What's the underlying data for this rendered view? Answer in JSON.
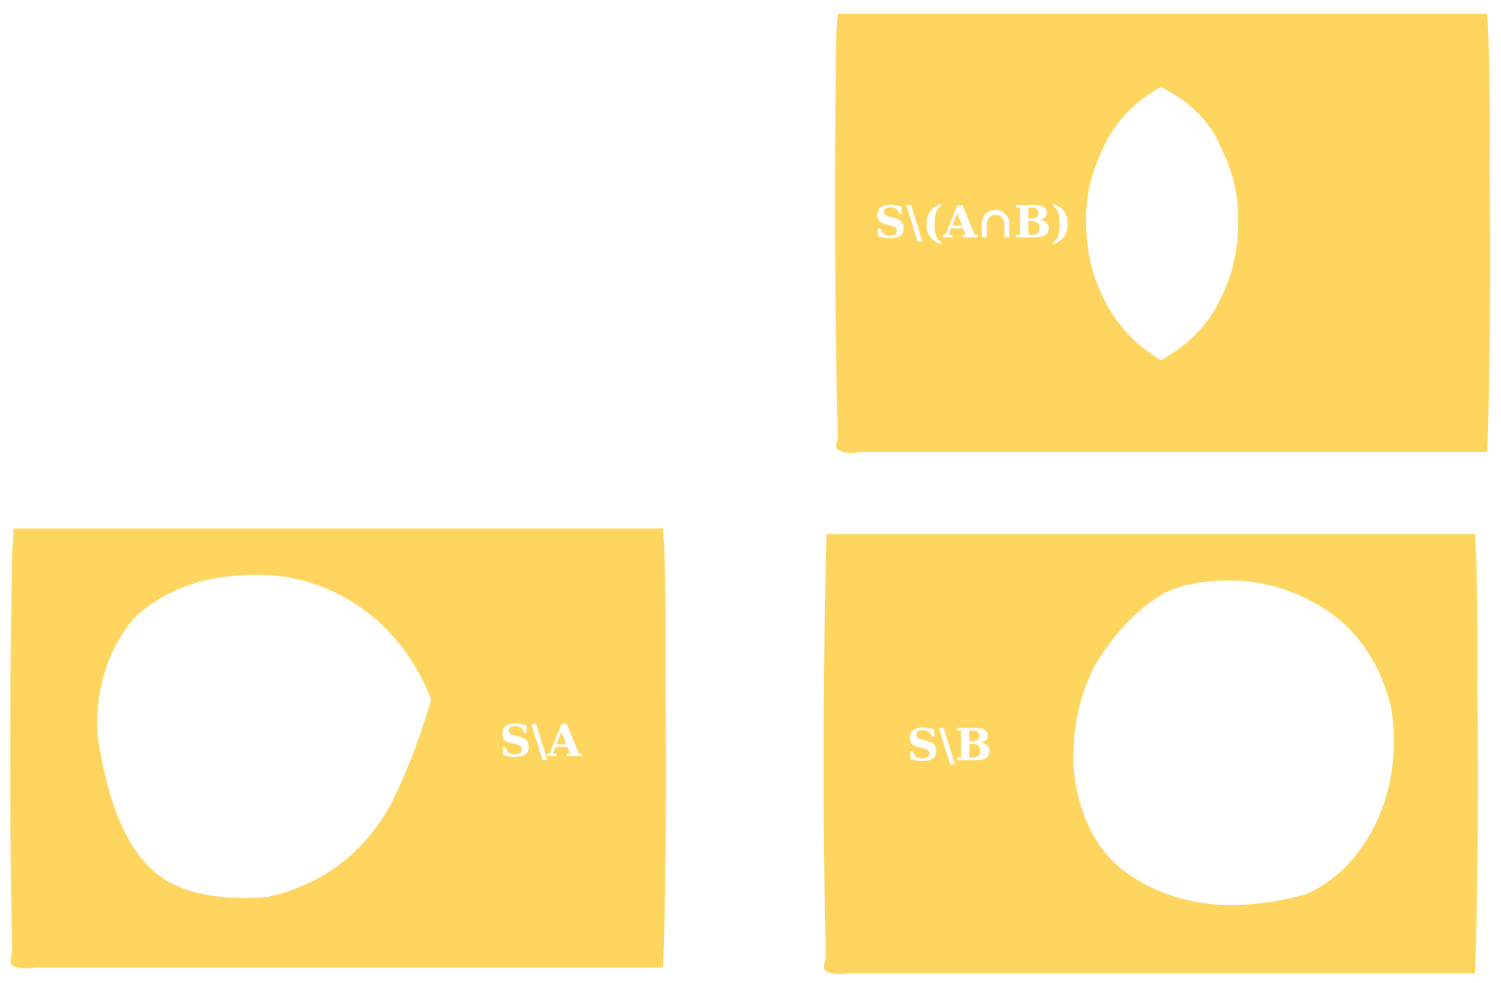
{
  "colors": {
    "panel_fill": "#fdd55f",
    "hole_fill": "#ffffff",
    "background": "#ffffff"
  },
  "panels": [
    {
      "id": "complement-of-intersection",
      "label": "S\\(A∩B)",
      "hole_shape": "lens"
    },
    {
      "id": "complement-of-a",
      "label": "S\\A",
      "hole_shape": "circle"
    },
    {
      "id": "complement-of-b",
      "label": "S\\B",
      "hole_shape": "circle"
    }
  ]
}
